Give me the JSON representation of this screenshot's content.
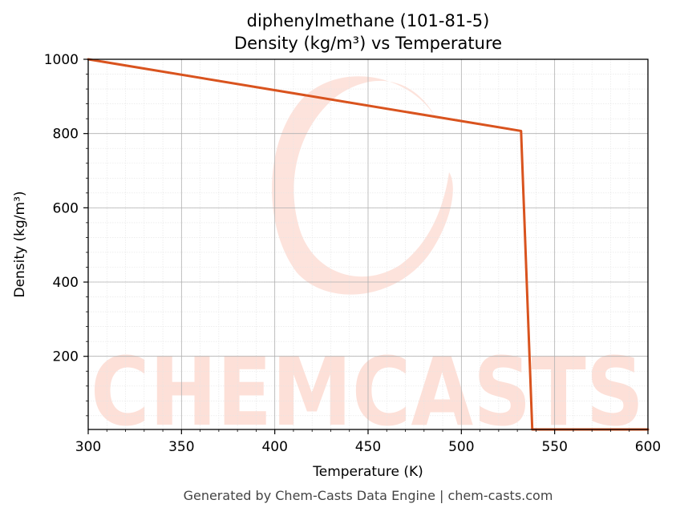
{
  "chart_data": {
    "type": "line",
    "title": "diphenylmethane (101-81-5)",
    "subtitle": "Density (kg/m³) vs Temperature",
    "xlabel": "Temperature (K)",
    "ylabel": "Density (kg/m³)",
    "xlim": [
      300,
      600
    ],
    "ylim": [
      3,
      1000
    ],
    "x_ticks": [
      300,
      350,
      400,
      450,
      500,
      550,
      600
    ],
    "y_ticks": [
      200,
      400,
      600,
      800,
      1000
    ],
    "grid": true,
    "series": [
      {
        "color": "#d9531e",
        "points": [
          [
            300,
            1000
          ],
          [
            532,
            807
          ],
          [
            538,
            3
          ],
          [
            600,
            3
          ]
        ]
      }
    ]
  },
  "watermark": {
    "text": "CHEMCASTS",
    "color": "#fde0d8"
  },
  "footer": "Generated by Chem-Casts Data Engine | chem-casts.com"
}
